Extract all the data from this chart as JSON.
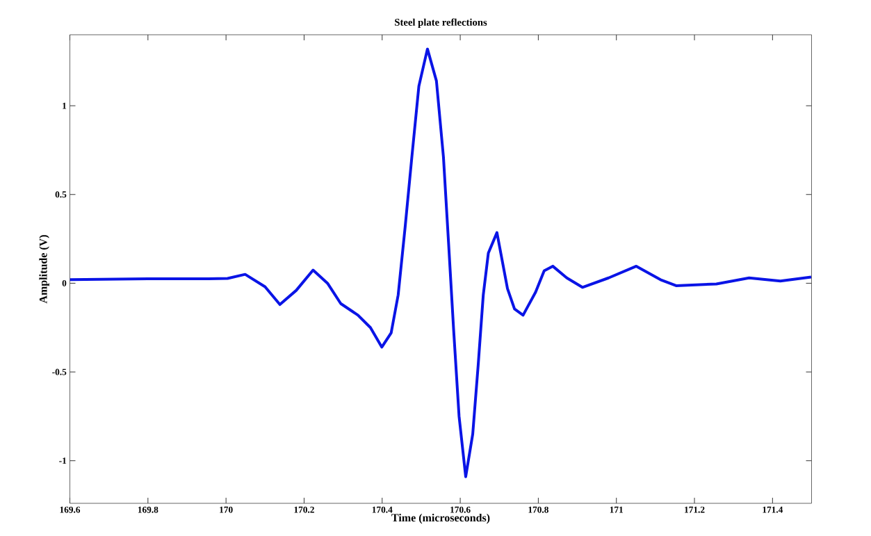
{
  "chart_data": {
    "type": "line",
    "title": "Steel plate reflections",
    "xlabel": "Time (microseconds)",
    "ylabel": "Amplitude (V)",
    "x": [
      169.6,
      169.8,
      169.955,
      170.004,
      170.049,
      170.1,
      170.138,
      170.18,
      170.223,
      170.26,
      170.294,
      170.338,
      170.37,
      170.399,
      170.423,
      170.441,
      170.459,
      170.476,
      170.494,
      170.516,
      170.539,
      170.557,
      170.57,
      170.583,
      170.597,
      170.614,
      170.632,
      170.646,
      170.659,
      170.672,
      170.694,
      170.721,
      170.739,
      170.761,
      170.793,
      170.815,
      170.837,
      170.873,
      170.913,
      170.98,
      171.051,
      171.113,
      171.153,
      171.256,
      171.34,
      171.42,
      171.499
    ],
    "values": [
      0.02,
      0.025,
      0.025,
      0.027,
      0.05,
      -0.02,
      -0.12,
      -0.04,
      0.074,
      0.0,
      -0.115,
      -0.18,
      -0.25,
      -0.36,
      -0.28,
      -0.066,
      0.32,
      0.71,
      1.11,
      1.32,
      1.14,
      0.71,
      0.23,
      -0.26,
      -0.75,
      -1.09,
      -0.85,
      -0.46,
      -0.066,
      0.17,
      0.285,
      -0.03,
      -0.145,
      -0.18,
      -0.05,
      0.07,
      0.096,
      0.03,
      -0.023,
      0.03,
      0.096,
      0.02,
      -0.014,
      -0.004,
      0.03,
      0.012,
      0.035
    ],
    "color": "#0a14e6",
    "line_style": "solid",
    "xlim": [
      169.6,
      171.5
    ],
    "ylim": [
      -1.24,
      1.4
    ],
    "xticks": [
      169.6,
      169.8,
      170,
      170.2,
      170.4,
      170.6,
      170.8,
      171,
      171.2,
      171.4
    ],
    "yticks": [
      -1,
      -0.5,
      0,
      0.5,
      1
    ]
  }
}
